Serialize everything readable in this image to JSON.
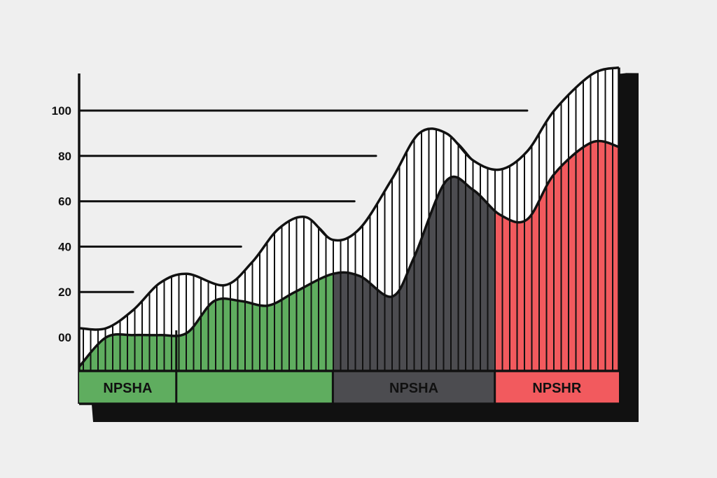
{
  "colors": {
    "background": "#efefef",
    "green": "#5fad5f",
    "gray": "#4c4c50",
    "red": "#f25a5e",
    "ink": "#111111",
    "hatch_fill": "#ffffff"
  },
  "chart_data": {
    "type": "area",
    "title": "",
    "xlabel": "",
    "ylabel": "",
    "ylim": [
      -15,
      120
    ],
    "y_ticks": [
      {
        "value": 0,
        "label": "00"
      },
      {
        "value": 20,
        "label": "20"
      },
      {
        "value": 40,
        "label": "40"
      },
      {
        "value": 60,
        "label": "60"
      },
      {
        "value": 80,
        "label": "80"
      },
      {
        "value": 100,
        "label": "100"
      }
    ],
    "series": [
      {
        "style": "hatched-envelope",
        "x": [
          0,
          5,
          10,
          15,
          20,
          27,
          32,
          37,
          42,
          47,
          52,
          58,
          63,
          68,
          73,
          78,
          83,
          88,
          95,
          100
        ],
        "values": [
          4,
          4,
          12,
          24,
          28,
          23,
          33,
          48,
          53,
          43,
          48,
          70,
          90,
          90,
          78,
          74,
          82,
          100,
          116,
          119
        ]
      },
      {
        "style": "filled-area",
        "x": [
          0,
          5,
          10,
          15,
          20,
          25,
          30,
          35,
          40,
          47,
          52,
          58,
          62,
          68,
          73,
          78,
          83,
          88,
          95,
          100
        ],
        "values": [
          -13,
          0,
          1,
          1,
          2,
          16,
          16,
          14,
          20,
          28,
          27,
          18,
          35,
          69,
          65,
          54,
          52,
          72,
          86,
          84
        ]
      }
    ],
    "reference_lines": [
      {
        "y": 20,
        "x_end": 10
      },
      {
        "y": 40,
        "x_end": 30
      },
      {
        "y": 60,
        "x_end": 51
      },
      {
        "y": 80,
        "x_end": 55
      },
      {
        "y": 100,
        "x_end": 83
      }
    ],
    "segments": [
      {
        "label": "NPSHA",
        "x_start": 0,
        "x_end": 18,
        "color": "#5fad5f"
      },
      {
        "label": "",
        "x_start": 18,
        "x_end": 47,
        "color": "#5fad5f"
      },
      {
        "label": "NPSHA",
        "x_start": 47,
        "x_end": 77,
        "color": "#4c4c50"
      },
      {
        "label": "NPSHR",
        "x_start": 77,
        "x_end": 100,
        "color": "#f25a5e"
      }
    ],
    "grid": false,
    "legend": "none"
  }
}
